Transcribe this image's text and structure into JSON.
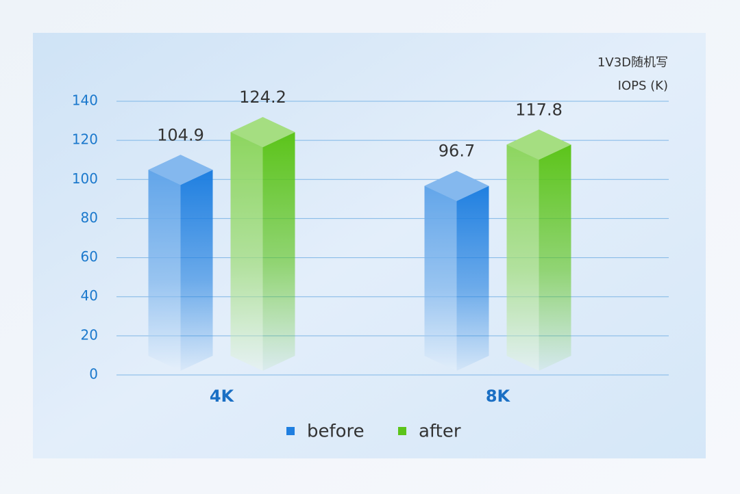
{
  "chart_data": {
    "type": "bar",
    "title": "1V3D随机写",
    "y_label": "IOPS (K)",
    "categories": [
      "4K",
      "8K"
    ],
    "series": [
      {
        "name": "before",
        "color": "#1f7fe0",
        "values": [
          104.9,
          96.7
        ]
      },
      {
        "name": "after",
        "color": "#5cc41a",
        "values": [
          124.2,
          117.8
        ]
      }
    ],
    "ylim": [
      0,
      140
    ],
    "yticks": [
      0,
      20,
      40,
      60,
      80,
      100,
      120,
      140
    ],
    "grid": true
  }
}
